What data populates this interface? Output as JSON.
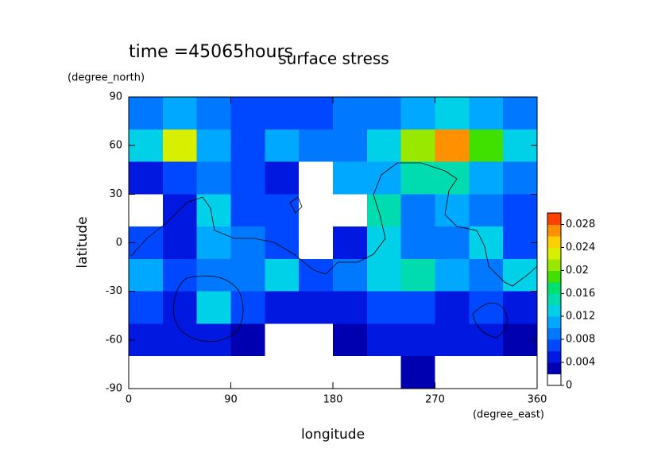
{
  "chart_data": {
    "type": "contour",
    "title": "surface stress",
    "subtitle": "time =45065hours",
    "x_label": "longitude",
    "x_unit": "(degree_east)",
    "y_label": "latitude",
    "y_unit": "(degree_north)",
    "x": [
      15,
      45,
      75,
      105,
      135,
      165,
      195,
      225,
      255,
      285,
      315,
      345
    ],
    "y": [
      80,
      60,
      40,
      20,
      0,
      -20,
      -40,
      -60,
      -80
    ],
    "z": [
      [
        0.008,
        0.01,
        0.008,
        0.006,
        0.006,
        0.006,
        0.008,
        0.008,
        0.01,
        0.012,
        0.01,
        0.008
      ],
      [
        0.012,
        0.022,
        0.01,
        0.006,
        0.01,
        0.008,
        0.008,
        0.012,
        0.02,
        0.026,
        0.018,
        0.012
      ],
      [
        0.004,
        0.006,
        0.008,
        0.006,
        0.004,
        0,
        0.01,
        0.01,
        0.014,
        0.014,
        0.01,
        0.008
      ],
      [
        0,
        0.004,
        0.012,
        0.006,
        0.006,
        0,
        0,
        0.014,
        0.008,
        0.01,
        0.008,
        0.006
      ],
      [
        0.006,
        0.004,
        0.01,
        0.008,
        0.006,
        0,
        0.004,
        0.012,
        0.008,
        0.008,
        0.012,
        0.006
      ],
      [
        0.01,
        0.006,
        0.008,
        0.008,
        0.012,
        0.006,
        0.008,
        0.012,
        0.014,
        0.01,
        0.008,
        0.012
      ],
      [
        0.006,
        0.004,
        0.012,
        0.006,
        0.004,
        0.004,
        0.004,
        0.006,
        0.006,
        0.004,
        0.006,
        0.004
      ],
      [
        0.004,
        0.004,
        0.004,
        0.002,
        0,
        0,
        0.002,
        0.004,
        0.004,
        0.004,
        0.004,
        0.002
      ],
      [
        0,
        0,
        0,
        0,
        0,
        0,
        0,
        0,
        0.002,
        0,
        0,
        0
      ]
    ],
    "xlim": [
      0,
      360
    ],
    "xticks": [
      0,
      90,
      180,
      270,
      360
    ],
    "ylim": [
      -90,
      90
    ],
    "yticks": [
      -90,
      -60,
      -30,
      0,
      30,
      60,
      90
    ],
    "colorbar": {
      "lim": [
        0,
        0.03
      ],
      "ticks": [
        0,
        0.004,
        0.008,
        0.012,
        0.016,
        0.02,
        0.024,
        0.028
      ],
      "colors": [
        "#ffffff",
        "#0000b0",
        "#0018e0",
        "#0048ff",
        "#0078ff",
        "#00a8ff",
        "#00d0e8",
        "#00dcb0",
        "#00e070",
        "#40e000",
        "#98e800",
        "#d8f000",
        "#ffd000",
        "#ff9000",
        "#ff4000"
      ]
    }
  }
}
